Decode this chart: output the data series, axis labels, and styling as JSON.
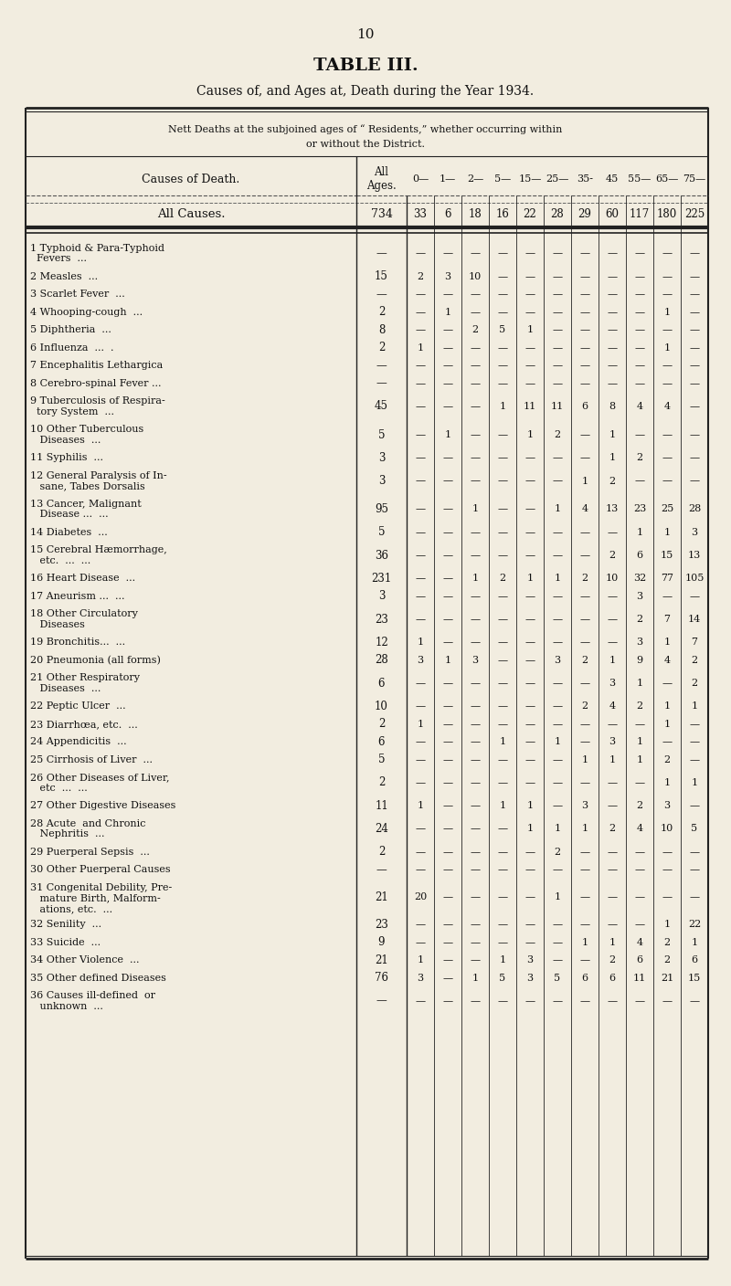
{
  "page_number": "10",
  "title": "TABLE III.",
  "subtitle": "Causes of, and Ages at, Death during the Year 1934.",
  "bg_color": "#f2ede0",
  "col_headers": [
    "Causes of Death.",
    "All\nAges.",
    "0—",
    "1—",
    "2—",
    "5—",
    "15—",
    "25—",
    "35-",
    "45",
    "55—",
    "65—",
    "75—"
  ],
  "summary_label": "All Causes.",
  "summary_vals": [
    "734",
    "33",
    "6",
    "18",
    "16",
    "22",
    "28",
    "29",
    "60",
    "117",
    "180",
    "225"
  ],
  "rows": [
    {
      "label": [
        "1 Typhoid & Para-Typhoid",
        "  Fevers  ..."
      ],
      "vals": [
        "—",
        "—",
        "—",
        "—",
        "—",
        "—",
        "—",
        "—",
        "—",
        "—",
        "—",
        "—"
      ]
    },
    {
      "label": [
        "2 Measles  ..."
      ],
      "vals": [
        "15",
        "2",
        "3",
        "10",
        "—",
        "—",
        "—",
        "—",
        "—",
        "—",
        "—",
        "—"
      ]
    },
    {
      "label": [
        "3 Scarlet Fever  ..."
      ],
      "vals": [
        "—",
        "—",
        "—",
        "—",
        "—",
        "—",
        "—",
        "—",
        "—",
        "—",
        "—",
        "—"
      ]
    },
    {
      "label": [
        "4 Whooping-cough  ..."
      ],
      "vals": [
        "2",
        "—",
        "1",
        "—",
        "—",
        "—",
        "—",
        "—",
        "—",
        "—",
        "1",
        "—"
      ]
    },
    {
      "label": [
        "5 Diphtheria  ..."
      ],
      "vals": [
        "8",
        "—",
        "—",
        "2",
        "5",
        "1",
        "—",
        "—",
        "—",
        "—",
        "—",
        "—"
      ]
    },
    {
      "label": [
        "6 Influenza  ...  ."
      ],
      "vals": [
        "2",
        "1",
        "—",
        "—",
        "—",
        "—",
        "—",
        "—",
        "—",
        "—",
        "1",
        "—"
      ]
    },
    {
      "label": [
        "7 Encephalitis Lethargica"
      ],
      "vals": [
        "—",
        "—",
        "—",
        "—",
        "—",
        "—",
        "—",
        "—",
        "—",
        "—",
        "—",
        "—"
      ]
    },
    {
      "label": [
        "8 Cerebro-spinal Fever ..."
      ],
      "vals": [
        "—",
        "—",
        "—",
        "—",
        "—",
        "—",
        "—",
        "—",
        "—",
        "—",
        "—",
        "—"
      ]
    },
    {
      "label": [
        "9 Tuberculosis of Respira-",
        "  tory System  ..."
      ],
      "vals": [
        "45",
        "—",
        "—",
        "—",
        "1",
        "11",
        "11",
        "6",
        "8",
        "4",
        "4",
        "—"
      ]
    },
    {
      "label": [
        "10 Other Tuberculous",
        "   Diseases  ..."
      ],
      "vals": [
        "5",
        "—",
        "1",
        "—",
        "—",
        "1",
        "2",
        "—",
        "1",
        "—",
        "—",
        "—"
      ]
    },
    {
      "label": [
        "11 Syphilis  ..."
      ],
      "vals": [
        "3",
        "—",
        "—",
        "—",
        "—",
        "—",
        "—",
        "—",
        "1",
        "2",
        "—",
        "—"
      ]
    },
    {
      "label": [
        "12 General Paralysis of In-",
        "   sane, Tabes Dorsalis"
      ],
      "vals": [
        "3",
        "—",
        "—",
        "—",
        "—",
        "—",
        "—",
        "1",
        "2",
        "—",
        "—",
        "—"
      ]
    },
    {
      "label": [
        "13 Cancer, Malignant",
        "   Disease ...  ..."
      ],
      "vals": [
        "95",
        "—",
        "—",
        "1",
        "—",
        "—",
        "1",
        "4",
        "13",
        "23",
        "25",
        "28"
      ]
    },
    {
      "label": [
        "14 Diabetes  ..."
      ],
      "vals": [
        "5",
        "—",
        "—",
        "—",
        "—",
        "—",
        "—",
        "—",
        "—",
        "1",
        "1",
        "3"
      ]
    },
    {
      "label": [
        "15 Cerebral Hæmorrhage,",
        "   etc.  ...  ..."
      ],
      "vals": [
        "36",
        "—",
        "—",
        "—",
        "—",
        "—",
        "—",
        "—",
        "2",
        "6",
        "15",
        "13"
      ]
    },
    {
      "label": [
        "16 Heart Disease  ..."
      ],
      "vals": [
        "231",
        "—",
        "—",
        "1",
        "2",
        "1",
        "1",
        "2",
        "10",
        "32",
        "77",
        "105"
      ]
    },
    {
      "label": [
        "17 Aneurism ...  ..."
      ],
      "vals": [
        "3",
        "—",
        "—",
        "—",
        "—",
        "—",
        "—",
        "—",
        "—",
        "3",
        "—",
        "—"
      ]
    },
    {
      "label": [
        "18 Other Circulatory",
        "   Diseases"
      ],
      "vals": [
        "23",
        "—",
        "—",
        "—",
        "—",
        "—",
        "—",
        "—",
        "—",
        "2",
        "7",
        "14"
      ]
    },
    {
      "label": [
        "19 Bronchitis...  ..."
      ],
      "vals": [
        "12",
        "1",
        "—",
        "—",
        "—",
        "—",
        "—",
        "—",
        "—",
        "3",
        "1",
        "7"
      ]
    },
    {
      "label": [
        "20 Pneumonia (all forms)"
      ],
      "vals": [
        "28",
        "3",
        "1",
        "3",
        "—",
        "—",
        "3",
        "2",
        "1",
        "9",
        "4",
        "2"
      ]
    },
    {
      "label": [
        "21 Other Respiratory",
        "   Diseases  ..."
      ],
      "vals": [
        "6",
        "—",
        "—",
        "—",
        "—",
        "—",
        "—",
        "—",
        "3",
        "1",
        "—",
        "2"
      ]
    },
    {
      "label": [
        "22 Peptic Ulcer  ..."
      ],
      "vals": [
        "10",
        "—",
        "—",
        "—",
        "—",
        "—",
        "—",
        "2",
        "4",
        "2",
        "1",
        "1"
      ]
    },
    {
      "label": [
        "23 Diarrhœa, etc.  ..."
      ],
      "vals": [
        "2",
        "1",
        "—",
        "—",
        "—",
        "—",
        "—",
        "—",
        "—",
        "—",
        "1",
        "—"
      ]
    },
    {
      "label": [
        "24 Appendicitis  ..."
      ],
      "vals": [
        "6",
        "—",
        "—",
        "—",
        "1",
        "—",
        "1",
        "—",
        "3",
        "1",
        "—",
        "—"
      ]
    },
    {
      "label": [
        "25 Cirrhosis of Liver  ..."
      ],
      "vals": [
        "5",
        "—",
        "—",
        "—",
        "—",
        "—",
        "—",
        "1",
        "1",
        "1",
        "2",
        "—"
      ]
    },
    {
      "label": [
        "26 Other Diseases of Liver,",
        "   etc  ...  ..."
      ],
      "vals": [
        "2",
        "—",
        "—",
        "—",
        "—",
        "—",
        "—",
        "—",
        "—",
        "—",
        "1",
        "1"
      ]
    },
    {
      "label": [
        "27 Other Digestive Diseases"
      ],
      "vals": [
        "11",
        "1",
        "—",
        "—",
        "1",
        "1",
        "—",
        "3",
        "—",
        "2",
        "3",
        "—"
      ]
    },
    {
      "label": [
        "28 Acute  and Chronic",
        "   Nephritis  ..."
      ],
      "vals": [
        "24",
        "—",
        "—",
        "—",
        "—",
        "1",
        "1",
        "1",
        "2",
        "4",
        "10",
        "5"
      ]
    },
    {
      "label": [
        "29 Puerperal Sepsis  ..."
      ],
      "vals": [
        "2",
        "—",
        "—",
        "—",
        "—",
        "—",
        "2",
        "—",
        "—",
        "—",
        "—",
        "—"
      ]
    },
    {
      "label": [
        "30 Other Puerperal Causes"
      ],
      "vals": [
        "—",
        "—",
        "—",
        "—",
        "—",
        "—",
        "—",
        "—",
        "—",
        "—",
        "—",
        "—"
      ]
    },
    {
      "label": [
        "31 Congenital Debility, Pre-",
        "   mature Birth, Malform-",
        "   ations, etc.  ..."
      ],
      "vals": [
        "21",
        "20",
        "—",
        "—",
        "—",
        "—",
        "1",
        "—",
        "—",
        "—",
        "—",
        "—"
      ]
    },
    {
      "label": [
        "32 Senility  ..."
      ],
      "vals": [
        "23",
        "—",
        "—",
        "—",
        "—",
        "—",
        "—",
        "—",
        "—",
        "—",
        "1",
        "22"
      ]
    },
    {
      "label": [
        "33 Suicide  ..."
      ],
      "vals": [
        "9",
        "—",
        "—",
        "—",
        "—",
        "—",
        "—",
        "1",
        "1",
        "4",
        "2",
        "1"
      ]
    },
    {
      "label": [
        "34 Other Violence  ..."
      ],
      "vals": [
        "21",
        "1",
        "—",
        "—",
        "1",
        "3",
        "—",
        "—",
        "2",
        "6",
        "2",
        "6"
      ]
    },
    {
      "label": [
        "35 Other defined Diseases"
      ],
      "vals": [
        "76",
        "3",
        "—",
        "1",
        "5",
        "3",
        "5",
        "6",
        "6",
        "11",
        "21",
        "15"
      ]
    },
    {
      "label": [
        "36 Causes ill-defined  or",
        "   unknown  ..."
      ],
      "vals": [
        "—",
        "—",
        "—",
        "—",
        "—",
        "—",
        "—",
        "—",
        "—",
        "—",
        "—",
        "—"
      ]
    }
  ]
}
